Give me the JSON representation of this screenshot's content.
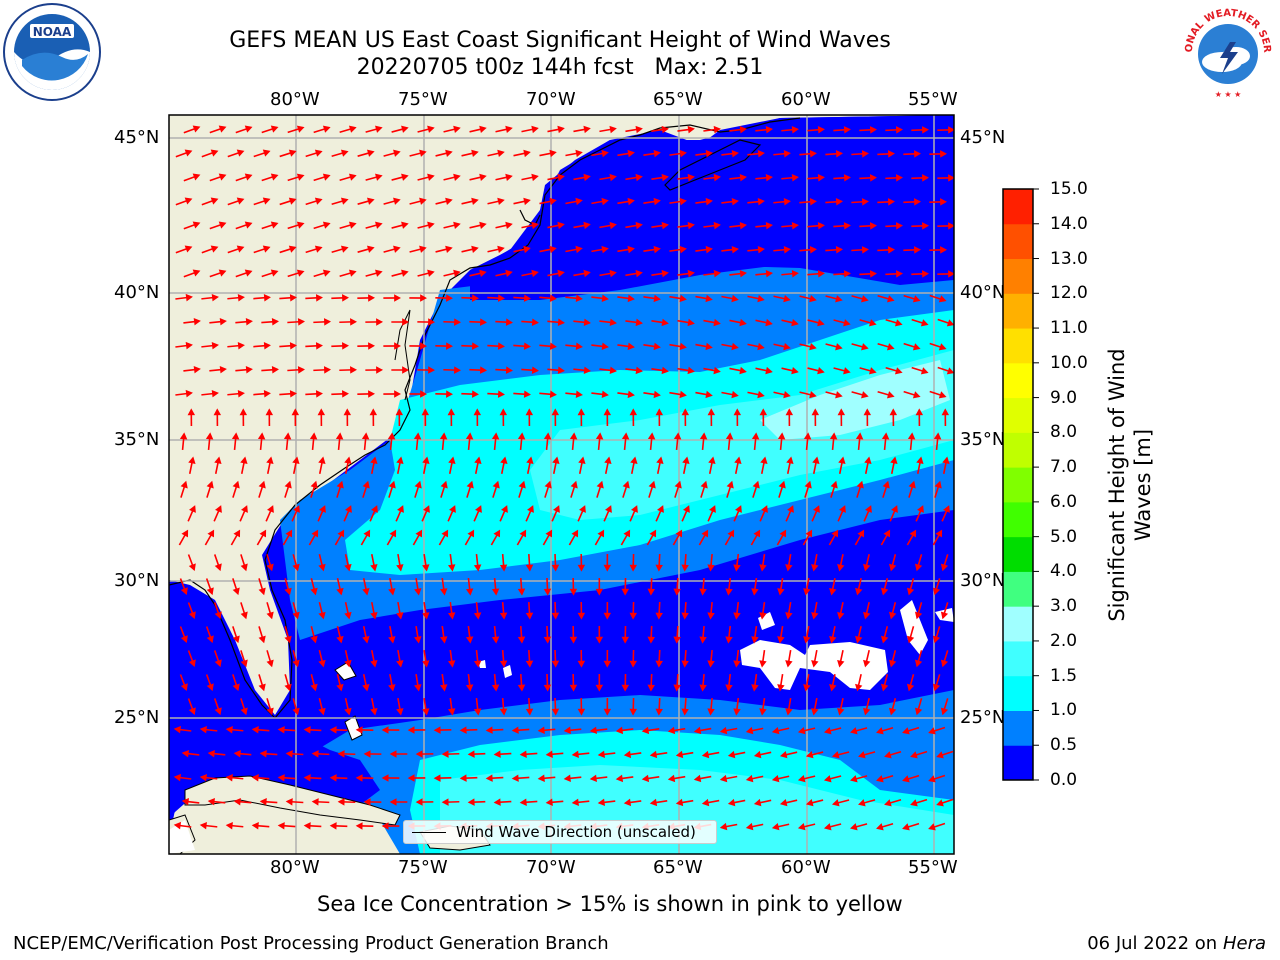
{
  "title": {
    "line1": "GEFS MEAN US East Coast Significant Height of Wind Waves",
    "line2": "20220705 t00z 144h fcst   Max: 2.51"
  },
  "logos": {
    "left": "NOAA",
    "right": "NATIONAL WEATHER SERVICE"
  },
  "axes": {
    "lon_labels": [
      "80°W",
      "75°W",
      "70°W",
      "65°W",
      "60°W",
      "55°W"
    ],
    "lat_labels": [
      "45°N",
      "40°N",
      "35°N",
      "30°N",
      "25°N"
    ],
    "lon_range": [
      -85,
      -53.5
    ],
    "lat_range": [
      20.5,
      46
    ]
  },
  "colorbar": {
    "title": "Significant Height of Wind Waves [m]",
    "ticks": [
      "15.0",
      "14.0",
      "13.0",
      "12.0",
      "11.0",
      "10.0",
      "9.0",
      "8.0",
      "7.0",
      "6.0",
      "5.0",
      "4.0",
      "3.0",
      "2.0",
      "1.5",
      "1.0",
      "0.5",
      "0.0"
    ],
    "colors_bottom_to_top": [
      "#0000ff",
      "#0080ff",
      "#00ffff",
      "#40ffff",
      "#a0ffff",
      "#40ff80",
      "#00dd00",
      "#40ff00",
      "#80ff00",
      "#c0ff00",
      "#e0ff00",
      "#ffff00",
      "#ffe000",
      "#ffb000",
      "#ff8000",
      "#ff5000",
      "#ff2000"
    ]
  },
  "legend": {
    "label": "Wind Wave Direction (unscaled)"
  },
  "note": "Sea Ice Concentration > 15% is shown in pink to yellow",
  "footer": {
    "left": "NCEP/EMC/Verification Post Processing Product Generation Branch",
    "right_prefix": "06 Jul 2022 on ",
    "right_host": "Hera"
  },
  "colors": {
    "land": "#efefdc",
    "ocean_0": "#0000ff",
    "ocean_05": "#0080ff",
    "ocean_1": "#00ffff",
    "ocean_15": "#40ffff",
    "ocean_2": "#a0ffff",
    "arrow": "#ff0000",
    "grid": "#b0b0b0"
  }
}
